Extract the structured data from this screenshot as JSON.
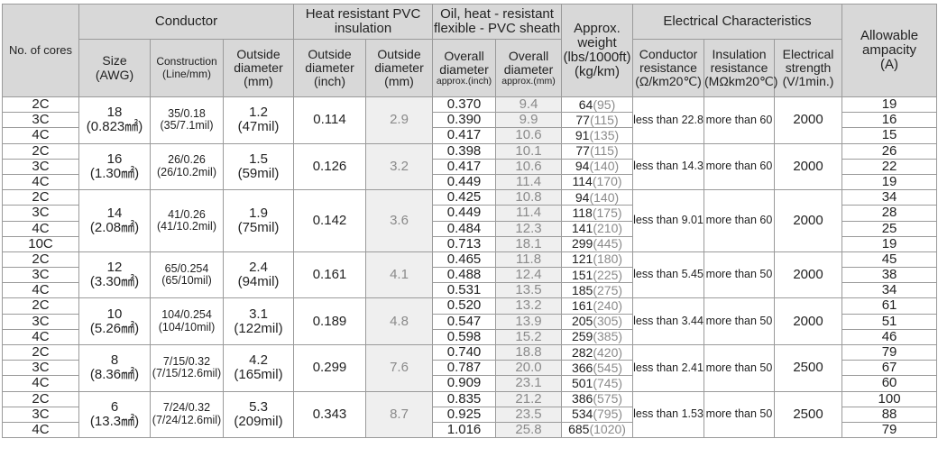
{
  "headers": {
    "cores": "No. of cores",
    "conductor": "Conductor",
    "insulation": "Heat resistant PVC insulation",
    "sheath": "Oil, heat - resistant flexible - PVC sheath",
    "weight": "Approx. weight",
    "weight_unit": "(lbs/1000ft)",
    "weight_unit2": "(kg/km)",
    "electrical": "Electrical Characteristics",
    "ampacity": "Allowable ampacity",
    "ampacity_unit": "(A)",
    "size": "Size",
    "size_unit": "(AWG)",
    "construction": "Construction",
    "construction_unit": "(Line/mm)",
    "cond_od": "Outside diameter",
    "cond_od_unit": "(mm)",
    "ins_od_inch": "Outside diameter",
    "ins_od_inch_unit": "(inch)",
    "ins_od_mm": "Outside diameter",
    "ins_od_mm_unit": "(mm)",
    "overall_inch": "Overall diameter",
    "overall_inch_note": "approx.(inch)",
    "overall_mm": "Overall diameter",
    "overall_mm_note": "approx.(mm)",
    "cond_res": "Conductor resistance",
    "cond_res_unit": "(Ω/km20℃)",
    "ins_res": "Insulation resistance",
    "ins_res_unit": "(MΩkm20℃)",
    "strength": "Electrical strength",
    "strength_unit": "(V/1min.)"
  },
  "groups": [
    {
      "size": "18",
      "size_mm": "(0.823㎟)",
      "construction": "35/0.18",
      "construction_mil": "(35/7.1mil)",
      "cond_od": "1.2",
      "cond_od_mil": "(47mil)",
      "ins_inch": "0.114",
      "ins_mm": "2.9",
      "cond_res": "less than 22.8",
      "ins_res": "more than 60",
      "strength": "2000",
      "rows": [
        {
          "cores": "2C",
          "od_inch": "0.370",
          "od_mm": "9.4",
          "w_lbs": "64",
          "w_kg": "(95)",
          "amp": "19"
        },
        {
          "cores": "3C",
          "od_inch": "0.390",
          "od_mm": "9.9",
          "w_lbs": "77",
          "w_kg": "(115)",
          "amp": "16"
        },
        {
          "cores": "4C",
          "od_inch": "0.417",
          "od_mm": "10.6",
          "w_lbs": "91",
          "w_kg": "(135)",
          "amp": "15"
        }
      ]
    },
    {
      "size": "16",
      "size_mm": "(1.30㎟)",
      "construction": "26/0.26",
      "construction_mil": "(26/10.2mil)",
      "cond_od": "1.5",
      "cond_od_mil": "(59mil)",
      "ins_inch": "0.126",
      "ins_mm": "3.2",
      "cond_res": "less than 14.3",
      "ins_res": "more than 60",
      "strength": "2000",
      "rows": [
        {
          "cores": "2C",
          "od_inch": "0.398",
          "od_mm": "10.1",
          "w_lbs": "77",
          "w_kg": "(115)",
          "amp": "26"
        },
        {
          "cores": "3C",
          "od_inch": "0.417",
          "od_mm": "10.6",
          "w_lbs": "94",
          "w_kg": "(140)",
          "amp": "22"
        },
        {
          "cores": "4C",
          "od_inch": "0.449",
          "od_mm": "11.4",
          "w_lbs": "114",
          "w_kg": "(170)",
          "amp": "19"
        }
      ]
    },
    {
      "size": "14",
      "size_mm": "(2.08㎟)",
      "construction": "41/0.26",
      "construction_mil": "(41/10.2mil)",
      "cond_od": "1.9",
      "cond_od_mil": "(75mil)",
      "ins_inch": "0.142",
      "ins_mm": "3.6",
      "cond_res": "less than 9.01",
      "ins_res": "more than 60",
      "strength": "2000",
      "rows": [
        {
          "cores": "2C",
          "od_inch": "0.425",
          "od_mm": "10.8",
          "w_lbs": "94",
          "w_kg": "(140)",
          "amp": "34"
        },
        {
          "cores": "3C",
          "od_inch": "0.449",
          "od_mm": "11.4",
          "w_lbs": "118",
          "w_kg": "(175)",
          "amp": "28"
        },
        {
          "cores": "4C",
          "od_inch": "0.484",
          "od_mm": "12.3",
          "w_lbs": "141",
          "w_kg": "(210)",
          "amp": "25"
        },
        {
          "cores": "10C",
          "od_inch": "0.713",
          "od_mm": "18.1",
          "w_lbs": "299",
          "w_kg": "(445)",
          "amp": "19"
        }
      ]
    },
    {
      "size": "12",
      "size_mm": "(3.30㎟)",
      "construction": "65/0.254",
      "construction_mil": "(65/10mil)",
      "cond_od": "2.4",
      "cond_od_mil": "(94mil)",
      "ins_inch": "0.161",
      "ins_mm": "4.1",
      "cond_res": "less than 5.45",
      "ins_res": "more than 50",
      "strength": "2000",
      "rows": [
        {
          "cores": "2C",
          "od_inch": "0.465",
          "od_mm": "11.8",
          "w_lbs": "121",
          "w_kg": "(180)",
          "amp": "45"
        },
        {
          "cores": "3C",
          "od_inch": "0.488",
          "od_mm": "12.4",
          "w_lbs": "151",
          "w_kg": "(225)",
          "amp": "38"
        },
        {
          "cores": "4C",
          "od_inch": "0.531",
          "od_mm": "13.5",
          "w_lbs": "185",
          "w_kg": "(275)",
          "amp": "34"
        }
      ]
    },
    {
      "size": "10",
      "size_mm": "(5.26㎟)",
      "construction": "104/0.254",
      "construction_mil": "(104/10mil)",
      "cond_od": "3.1",
      "cond_od_mil": "(122mil)",
      "ins_inch": "0.189",
      "ins_mm": "4.8",
      "cond_res": "less than 3.44",
      "ins_res": "more than 50",
      "strength": "2000",
      "rows": [
        {
          "cores": "2C",
          "od_inch": "0.520",
          "od_mm": "13.2",
          "w_lbs": "161",
          "w_kg": "(240)",
          "amp": "61"
        },
        {
          "cores": "3C",
          "od_inch": "0.547",
          "od_mm": "13.9",
          "w_lbs": "205",
          "w_kg": "(305)",
          "amp": "51"
        },
        {
          "cores": "4C",
          "od_inch": "0.598",
          "od_mm": "15.2",
          "w_lbs": "259",
          "w_kg": "(385)",
          "amp": "46"
        }
      ]
    },
    {
      "size": "8",
      "size_mm": "(8.36㎟)",
      "construction": "7/15/0.32",
      "construction_mil": "(7/15/12.6mil)",
      "cond_od": "4.2",
      "cond_od_mil": "(165mil)",
      "ins_inch": "0.299",
      "ins_mm": "7.6",
      "cond_res": "less than 2.41",
      "ins_res": "more than 50",
      "strength": "2500",
      "rows": [
        {
          "cores": "2C",
          "od_inch": "0.740",
          "od_mm": "18.8",
          "w_lbs": "282",
          "w_kg": "(420)",
          "amp": "79"
        },
        {
          "cores": "3C",
          "od_inch": "0.787",
          "od_mm": "20.0",
          "w_lbs": "366",
          "w_kg": "(545)",
          "amp": "67"
        },
        {
          "cores": "4C",
          "od_inch": "0.909",
          "od_mm": "23.1",
          "w_lbs": "501",
          "w_kg": "(745)",
          "amp": "60"
        }
      ]
    },
    {
      "size": "6",
      "size_mm": "(13.3㎟)",
      "construction": "7/24/0.32",
      "construction_mil": "(7/24/12.6mil)",
      "cond_od": "5.3",
      "cond_od_mil": "(209mil)",
      "ins_inch": "0.343",
      "ins_mm": "8.7",
      "cond_res": "less than 1.53",
      "ins_res": "more than 50",
      "strength": "2500",
      "rows": [
        {
          "cores": "2C",
          "od_inch": "0.835",
          "od_mm": "21.2",
          "w_lbs": "386",
          "w_kg": "(575)",
          "amp": "100"
        },
        {
          "cores": "3C",
          "od_inch": "0.925",
          "od_mm": "23.5",
          "w_lbs": "534",
          "w_kg": "(795)",
          "amp": "88"
        },
        {
          "cores": "4C",
          "od_inch": "1.016",
          "od_mm": "25.8",
          "w_lbs": "685",
          "w_kg": "(1020)",
          "amp": "79"
        }
      ]
    }
  ]
}
